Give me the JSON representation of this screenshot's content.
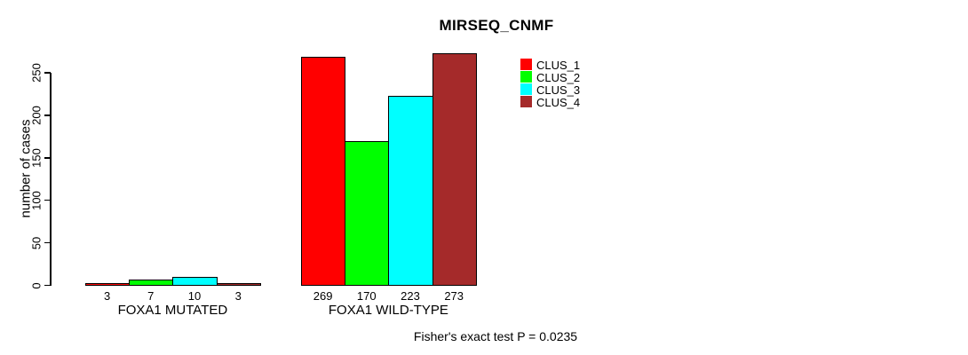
{
  "title": "MIRSEQ_CNMF",
  "footer": "Fisher's exact test P = 0.0235",
  "chart_data": {
    "type": "bar",
    "title": "MIRSEQ_CNMF",
    "xlabel": "",
    "ylabel": "number of cases",
    "ylim": [
      0,
      250
    ],
    "yticks": [
      0,
      50,
      100,
      150,
      200,
      250
    ],
    "grid": false,
    "legend_position": "top-right",
    "bar_value_labels_shown": true,
    "categories": [
      "FOXA1 MUTATED",
      "FOXA1 WILD-TYPE"
    ],
    "series": [
      {
        "name": "CLUS_1",
        "color": "#FF0000",
        "values": [
          3,
          269
        ]
      },
      {
        "name": "CLUS_2",
        "color": "#00FF00",
        "values": [
          7,
          170
        ]
      },
      {
        "name": "CLUS_3",
        "color": "#00FFFF",
        "values": [
          10,
          223
        ]
      },
      {
        "name": "CLUS_4",
        "color": "#A52A2A",
        "values": [
          3,
          273
        ]
      }
    ],
    "annotation": "Fisher's exact test P = 0.0235"
  }
}
